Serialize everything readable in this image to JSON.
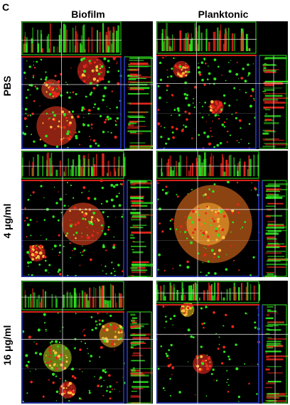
{
  "figure": {
    "panel_letter": "C",
    "columns": [
      "Biofilm",
      "Planktonic"
    ],
    "rows": [
      "PBS",
      "4 μg/ml",
      "16 μg/ml"
    ]
  },
  "colors": {
    "green_stain": "#2fe21f",
    "red_stain": "#e8261a",
    "section_line": "#d8d8d8",
    "frame_blue": "#2a3cc8",
    "frame_red": "#d8221a"
  }
}
